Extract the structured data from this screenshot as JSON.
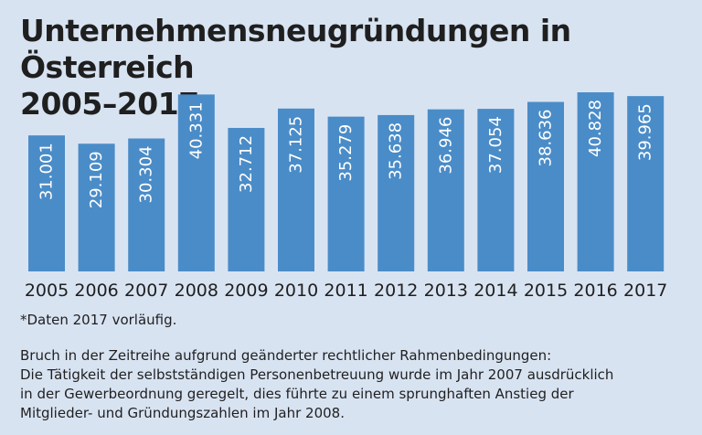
{
  "title_line1": "Unternehmensneugründungen in Österreich",
  "title_line2": "2005–2017",
  "footnote": "*Daten 2017 vorläufig.",
  "explanation_lines": [
    "Bruch in der Zeitreihe aufgrund geänderter rechtlicher Rahmenbedingungen:",
    "Die Tätigkeit der selbstständigen Personenbetreuung wurde im Jahr 2007 ausdrücklich",
    "in der Gewerbeordnung geregelt, dies führte zu einem sprunghaften Anstieg der",
    "Mitglieder- und Gründungszahlen im Jahr 2008."
  ],
  "colors": {
    "bar": "#4a8cc8",
    "background": "#d8e3f2"
  },
  "chart_data": {
    "type": "bar",
    "title": "Unternehmensneugründungen in Österreich 2005–2017",
    "categories": [
      "2005",
      "2006",
      "2007",
      "2008",
      "2009",
      "2010",
      "2011",
      "2012",
      "2013",
      "2014",
      "2015",
      "2016",
      "2017"
    ],
    "values": [
      31001,
      29109,
      30304,
      40331,
      32712,
      37125,
      35279,
      35638,
      36946,
      37054,
      38636,
      40828,
      39965
    ],
    "value_labels": [
      "31.001",
      "29.109",
      "30.304",
      "40.331",
      "32.712",
      "37.125",
      "35.279",
      "35.638",
      "36.946",
      "37.054",
      "38.636",
      "40.828",
      "39.965"
    ],
    "xlabel": "",
    "ylabel": "",
    "grid": false
  }
}
